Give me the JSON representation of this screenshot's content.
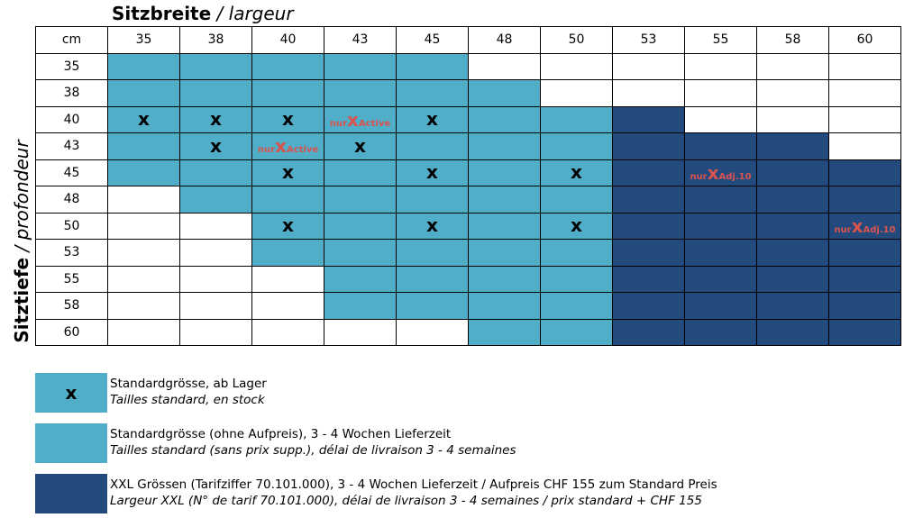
{
  "header": {
    "title_bold": "Sitzbreite",
    "title_rest": "/ largeur"
  },
  "side": {
    "title_bold": "Sitztiefe",
    "title_rest": "/ profondeur"
  },
  "colors": {
    "light": "#50aec8",
    "dark": "#234a7c",
    "white": "#ffffff",
    "note": "#d9534f"
  },
  "table": {
    "corner": "cm",
    "widths": [
      "35",
      "38",
      "40",
      "43",
      "45",
      "48",
      "50",
      "53",
      "55",
      "58",
      "60"
    ],
    "rows": [
      {
        "depth": "35",
        "cells": [
          "L",
          "L",
          "L",
          "L",
          "L",
          "W",
          "W",
          "W",
          "W",
          "W",
          "W"
        ],
        "marks": {}
      },
      {
        "depth": "38",
        "cells": [
          "L",
          "L",
          "L",
          "L",
          "L",
          "L",
          "W",
          "W",
          "W",
          "W",
          "W"
        ],
        "marks": {}
      },
      {
        "depth": "40",
        "cells": [
          "L",
          "L",
          "L",
          "L",
          "L",
          "L",
          "L",
          "D",
          "W",
          "W",
          "W"
        ],
        "marks": {
          "0": "x",
          "1": "x",
          "2": "x",
          "3": "nur-active",
          "4": "x"
        }
      },
      {
        "depth": "43",
        "cells": [
          "L",
          "L",
          "L",
          "L",
          "L",
          "L",
          "L",
          "D",
          "D",
          "D",
          "W"
        ],
        "marks": {
          "1": "x",
          "2": "nur-active",
          "3": "x"
        }
      },
      {
        "depth": "45",
        "cells": [
          "L",
          "L",
          "L",
          "L",
          "L",
          "L",
          "L",
          "D",
          "D",
          "D",
          "D"
        ],
        "marks": {
          "2": "x",
          "4": "x",
          "6": "x",
          "8": "nur-adj"
        }
      },
      {
        "depth": "48",
        "cells": [
          "W",
          "L",
          "L",
          "L",
          "L",
          "L",
          "L",
          "D",
          "D",
          "D",
          "D"
        ],
        "marks": {}
      },
      {
        "depth": "50",
        "cells": [
          "W",
          "W",
          "L",
          "L",
          "L",
          "L",
          "L",
          "D",
          "D",
          "D",
          "D"
        ],
        "marks": {
          "2": "x",
          "4": "x",
          "6": "x",
          "10": "nur-adj"
        }
      },
      {
        "depth": "53",
        "cells": [
          "W",
          "W",
          "L",
          "L",
          "L",
          "L",
          "L",
          "D",
          "D",
          "D",
          "D"
        ],
        "marks": {}
      },
      {
        "depth": "55",
        "cells": [
          "W",
          "W",
          "W",
          "L",
          "L",
          "L",
          "L",
          "D",
          "D",
          "D",
          "D"
        ],
        "marks": {}
      },
      {
        "depth": "58",
        "cells": [
          "W",
          "W",
          "W",
          "L",
          "L",
          "L",
          "L",
          "D",
          "D",
          "D",
          "D"
        ],
        "marks": {}
      },
      {
        "depth": "60",
        "cells": [
          "W",
          "W",
          "W",
          "W",
          "W",
          "L",
          "L",
          "D",
          "D",
          "D",
          "D"
        ],
        "marks": {}
      }
    ],
    "x_symbol": "x",
    "nur_active": {
      "pre": "nur",
      "x": "x",
      "post": "Active"
    },
    "nur_adj": {
      "pre": "nur",
      "x": "x",
      "post": "Adj.10"
    }
  },
  "legend": [
    {
      "swatch": "light",
      "symbol": "x",
      "line1": "Standardgrösse, ab Lager",
      "line2": "Tailles standard, en stock"
    },
    {
      "swatch": "light",
      "symbol": "",
      "line1": "Standardgrösse (ohne Aufpreis), 3 - 4 Wochen Lieferzeit",
      "line2": "Tailles standard (sans prix supp.), délai de livraison 3 - 4 semaines"
    },
    {
      "swatch": "dark",
      "symbol": "",
      "line1": "XXL Grössen (Tarifziffer 70.101.000), 3 - 4 Wochen Lieferzeit / Aufpreis CHF 155 zum Standard Preis",
      "line2": "Largeur XXL (N° de tarif 70.101.000), délai de livraison 3 - 4 semaines / prix standard + CHF 155"
    }
  ]
}
